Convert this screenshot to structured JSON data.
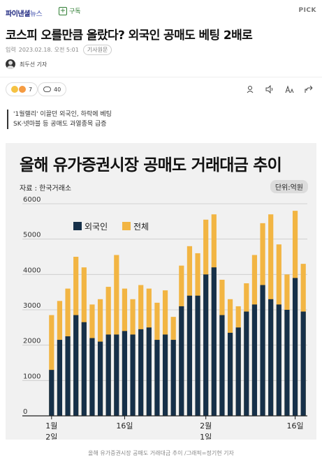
{
  "header": {
    "logo_main": "파이낸셜",
    "logo_sub": "뉴스",
    "subscribe_label": "구독",
    "pick_label": "PICK"
  },
  "article": {
    "headline": "코스피 오를만큼 올랐다? 외국인 공매도 베팅 2배로",
    "meta_label": "입력",
    "timestamp": "2023.02.18. 오전 5:01",
    "origin_button": "기사원문",
    "reporter": "최두선 기자",
    "reaction_count": "7",
    "comment_count": "40",
    "summary_line1": "'1월랠리' 이끌던 외국인, 하락에 베팅",
    "summary_line2": "SK·넷마블 등 공매도 과열종목 급증",
    "caption": "올해 유가증권시장 공매도 거래대금 추이 /그래픽=정기현 기자"
  },
  "icons": [
    "subscribe-plus-icon",
    "avatar-icon",
    "reaction-emoji-icon",
    "comment-icon",
    "audio-icon",
    "font-size-icon",
    "share-icon"
  ],
  "colors": {
    "foreign": "#163049",
    "total": "#f2b543",
    "background": "#f1f1f1"
  },
  "chart_data": {
    "type": "bar",
    "title": "올해 유가증권시장 공매도 거래대금 추이",
    "source": "자료 : 한국거래소",
    "unit": "단위:억원",
    "legend_position": "top-left",
    "ylim": [
      0,
      6000
    ],
    "yticks": [
      "6000",
      "5000",
      "4000",
      "3000",
      "2000",
      "1000",
      "0"
    ],
    "xtick_labels": [
      {
        "text": "1월",
        "index": 0,
        "row": 1
      },
      {
        "text": "2일",
        "index": 0,
        "row": 2
      },
      {
        "text": "16일",
        "index": 9,
        "row": 1
      },
      {
        "text": "2월",
        "index": 19,
        "row": 1
      },
      {
        "text": "1일",
        "index": 19,
        "row": 2
      },
      {
        "text": "16일",
        "index": 30,
        "row": 1
      }
    ],
    "series": [
      {
        "name": "외국인",
        "values": [
          1300,
          2150,
          2250,
          2850,
          2650,
          2200,
          2100,
          2300,
          2300,
          2400,
          2300,
          2450,
          2500,
          2150,
          2300,
          2150,
          3100,
          3400,
          3400,
          4000,
          4200,
          2850,
          2350,
          2500,
          2950,
          3150,
          3700,
          3300,
          3150,
          3000,
          3900,
          2950
        ]
      },
      {
        "name": "전체",
        "values": [
          2850,
          3250,
          3600,
          4500,
          4200,
          3150,
          3300,
          3650,
          4550,
          3600,
          3300,
          3700,
          3600,
          3200,
          3550,
          2800,
          4250,
          4800,
          4600,
          5550,
          5700,
          3850,
          3300,
          3100,
          3750,
          4550,
          5450,
          5700,
          4850,
          4000,
          5800,
          4300
        ]
      }
    ]
  }
}
